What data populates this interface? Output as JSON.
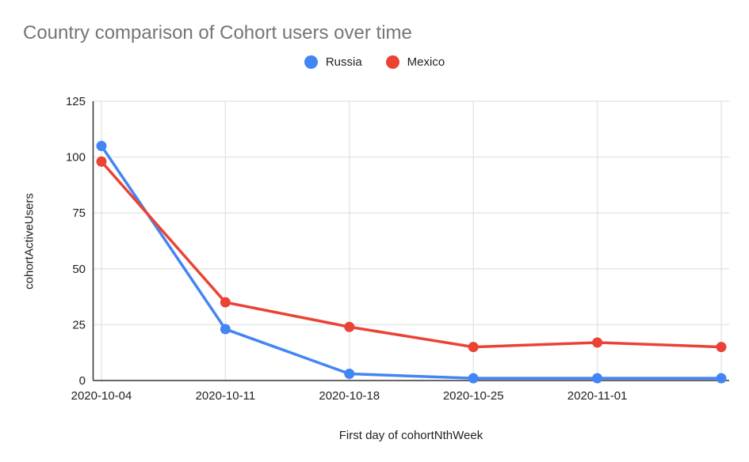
{
  "chart_data": {
    "type": "line",
    "title": "Country comparison of Cohort users over time",
    "xlabel": "First day of cohortNthWeek",
    "ylabel": "cohortActiveUsers",
    "categories": [
      "2020-10-04",
      "2020-10-11",
      "2020-10-18",
      "2020-10-25",
      "2020-11-01",
      ""
    ],
    "series": [
      {
        "name": "Russia",
        "color": "#4285F4",
        "values": [
          105,
          23,
          3,
          1,
          1,
          1
        ]
      },
      {
        "name": "Mexico",
        "color": "#EA4335",
        "values": [
          98,
          35,
          24,
          15,
          17,
          15
        ]
      }
    ],
    "ylim": [
      0,
      125
    ],
    "y_ticks": [
      0,
      25,
      50,
      75,
      100,
      125
    ],
    "grid": true,
    "legend_position": "top-center",
    "colors": {
      "title_text": "#757575",
      "axis_text": "#222222",
      "gridline": "#e6e6e6",
      "axis_line": "#333333",
      "background": "#ffffff"
    }
  }
}
